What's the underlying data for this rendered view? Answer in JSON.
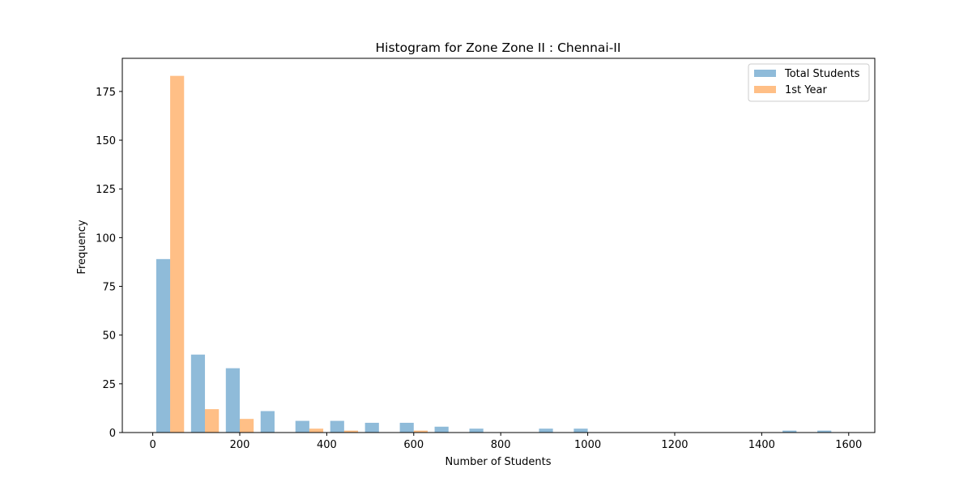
{
  "chart_data": {
    "type": "bar",
    "title": "Histogram for Zone Zone II : Chennai-II",
    "xlabel": "Number of Students",
    "ylabel": "Frequency",
    "xlim": [
      -70,
      1660
    ],
    "ylim": [
      0,
      192
    ],
    "x_ticks": [
      0,
      200,
      400,
      600,
      800,
      1000,
      1200,
      1400,
      1600
    ],
    "y_ticks": [
      0,
      25,
      50,
      75,
      100,
      125,
      150,
      175
    ],
    "bin_edges": [
      0,
      80,
      160,
      240,
      320,
      400,
      480,
      560,
      640,
      720,
      800,
      880,
      960,
      1040,
      1120,
      1200,
      1280,
      1360,
      1440,
      1520,
      1600
    ],
    "series": [
      {
        "name": "Total Students",
        "color": "#1f77b4",
        "values": [
          89,
          40,
          33,
          11,
          6,
          6,
          5,
          5,
          3,
          2,
          0,
          2,
          2,
          0,
          0,
          0,
          0,
          0,
          1,
          1
        ]
      },
      {
        "name": "1st Year",
        "color": "#ff7f0e",
        "values": [
          183,
          12,
          7,
          0,
          2,
          1,
          0,
          1,
          0,
          0,
          0,
          0,
          0,
          0,
          0,
          0,
          0,
          0,
          0,
          0
        ]
      }
    ],
    "legend_position": "upper-right",
    "grid": false
  }
}
